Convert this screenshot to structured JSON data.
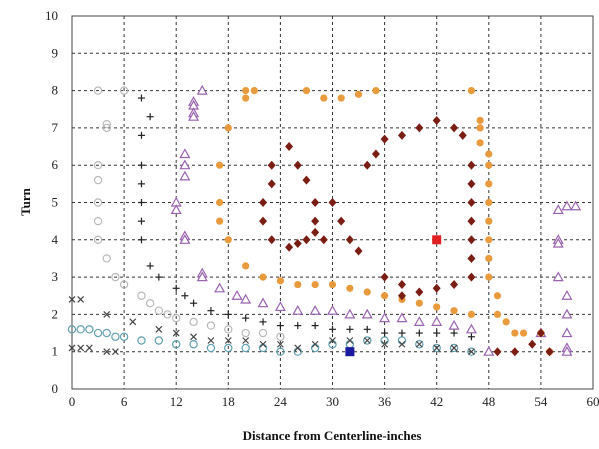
{
  "chart_data": {
    "type": "scatter",
    "title": "",
    "xlabel": "Distance from Centerline-inches",
    "ylabel": "Turn",
    "xlim": [
      0,
      60
    ],
    "ylim": [
      0,
      10
    ],
    "x_ticks": [
      "0",
      "6",
      "12",
      "18",
      "24",
      "30",
      "36",
      "42",
      "48",
      "54",
      "60"
    ],
    "y_ticks": [
      "0",
      "1",
      "2",
      "3",
      "4",
      "5",
      "6",
      "7",
      "8",
      "9",
      "10"
    ],
    "grid": "dashed",
    "legend": "none",
    "series": [
      {
        "marker": "open-circle-gray",
        "color": "#b8b8b8",
        "points": [
          [
            3,
            8
          ],
          [
            6,
            8
          ],
          [
            4,
            7.1
          ],
          [
            4,
            7.0
          ],
          [
            3,
            6
          ],
          [
            3,
            5.6
          ],
          [
            3,
            5
          ],
          [
            3,
            4.5
          ],
          [
            3,
            4
          ],
          [
            4,
            3.5
          ],
          [
            5,
            3
          ],
          [
            6,
            2.8
          ],
          [
            8,
            2.5
          ],
          [
            9,
            2.3
          ],
          [
            10,
            2.1
          ],
          [
            11,
            2
          ],
          [
            12,
            1.9
          ],
          [
            14,
            1.8
          ],
          [
            16,
            1.7
          ],
          [
            18,
            1.6
          ],
          [
            20,
            1.5
          ],
          [
            22,
            1.5
          ],
          [
            24,
            1.4
          ]
        ]
      },
      {
        "marker": "open-circle-teal",
        "color": "#5fa0b0",
        "points": [
          [
            0,
            1.6
          ],
          [
            1,
            1.6
          ],
          [
            2,
            1.6
          ],
          [
            3,
            1.5
          ],
          [
            4,
            1.5
          ],
          [
            5,
            1.4
          ],
          [
            6,
            1.4
          ],
          [
            8,
            1.3
          ],
          [
            10,
            1.3
          ],
          [
            12,
            1.2
          ],
          [
            14,
            1.2
          ],
          [
            16,
            1.1
          ],
          [
            18,
            1.1
          ],
          [
            20,
            1.1
          ],
          [
            22,
            1.1
          ],
          [
            24,
            1.0
          ],
          [
            26,
            1.0
          ],
          [
            28,
            1.1
          ],
          [
            30,
            1.2
          ],
          [
            32,
            1.2
          ],
          [
            34,
            1.3
          ],
          [
            36,
            1.3
          ],
          [
            38,
            1.3
          ],
          [
            40,
            1.2
          ],
          [
            42,
            1.1
          ],
          [
            44,
            1.1
          ],
          [
            46,
            1.0
          ]
        ]
      },
      {
        "marker": "plus",
        "color": "#222222",
        "points": [
          [
            8,
            7.8
          ],
          [
            9,
            7.3
          ],
          [
            8,
            6.8
          ],
          [
            8,
            6
          ],
          [
            8,
            5.5
          ],
          [
            8,
            5
          ],
          [
            8,
            4.5
          ],
          [
            8,
            4
          ],
          [
            9,
            3.3
          ],
          [
            10,
            3
          ],
          [
            12,
            2.7
          ],
          [
            13,
            2.5
          ],
          [
            14,
            2.3
          ],
          [
            16,
            2.1
          ],
          [
            18,
            2
          ],
          [
            20,
            1.9
          ],
          [
            22,
            1.8
          ],
          [
            24,
            1.7
          ],
          [
            26,
            1.7
          ],
          [
            28,
            1.7
          ],
          [
            30,
            1.6
          ],
          [
            32,
            1.6
          ],
          [
            34,
            1.6
          ],
          [
            36,
            1.5
          ],
          [
            38,
            1.5
          ],
          [
            40,
            1.5
          ],
          [
            42,
            1.5
          ],
          [
            44,
            1.5
          ],
          [
            46,
            1.4
          ]
        ]
      },
      {
        "marker": "x",
        "color": "#444444",
        "points": [
          [
            0,
            2.4
          ],
          [
            1,
            2.4
          ],
          [
            4,
            2
          ],
          [
            7,
            1.8
          ],
          [
            10,
            1.6
          ],
          [
            12,
            1.5
          ],
          [
            14,
            1.4
          ],
          [
            16,
            1.3
          ],
          [
            18,
            1.3
          ],
          [
            20,
            1.3
          ],
          [
            22,
            1.2
          ],
          [
            24,
            1.2
          ],
          [
            26,
            1.1
          ],
          [
            28,
            1.2
          ],
          [
            30,
            1.3
          ],
          [
            32,
            1.3
          ],
          [
            34,
            1.3
          ],
          [
            36,
            1.2
          ],
          [
            38,
            1.2
          ],
          [
            40,
            1.2
          ],
          [
            42,
            1.1
          ],
          [
            44,
            1.1
          ],
          [
            46,
            1.0
          ],
          [
            0,
            1.1
          ],
          [
            1,
            1.1
          ],
          [
            2,
            1.1
          ],
          [
            4,
            1.0
          ],
          [
            5,
            1.0
          ]
        ]
      },
      {
        "marker": "open-triangle",
        "color": "#9a62b0",
        "points": [
          [
            15,
            8
          ],
          [
            14,
            7.7
          ],
          [
            14,
            7.6
          ],
          [
            14,
            7.4
          ],
          [
            14,
            7.3
          ],
          [
            13,
            6.3
          ],
          [
            13,
            6.0
          ],
          [
            13,
            5.7
          ],
          [
            12,
            5
          ],
          [
            12,
            4.8
          ],
          [
            13,
            4.1
          ],
          [
            13,
            4.0
          ],
          [
            15,
            3.1
          ],
          [
            15,
            3.0
          ],
          [
            17,
            2.7
          ],
          [
            19,
            2.5
          ],
          [
            20,
            2.4
          ],
          [
            22,
            2.3
          ],
          [
            24,
            2.2
          ],
          [
            26,
            2.1
          ],
          [
            28,
            2.1
          ],
          [
            30,
            2.1
          ],
          [
            32,
            2.0
          ],
          [
            34,
            2.0
          ],
          [
            36,
            1.9
          ],
          [
            38,
            1.9
          ],
          [
            40,
            1.8
          ],
          [
            42,
            1.8
          ],
          [
            44,
            1.7
          ],
          [
            46,
            1.6
          ],
          [
            48,
            1.0
          ],
          [
            54,
            1.5
          ],
          [
            56,
            4.8
          ],
          [
            57,
            4.9
          ],
          [
            58,
            4.9
          ],
          [
            56,
            4
          ],
          [
            56,
            3.9
          ],
          [
            56,
            3.0
          ],
          [
            57,
            2.5
          ],
          [
            57,
            2.0
          ],
          [
            57,
            1.5
          ],
          [
            57,
            1.1
          ],
          [
            57,
            1.0
          ]
        ]
      },
      {
        "marker": "orange-dot",
        "color": "#e89a3c",
        "points": [
          [
            20,
            8
          ],
          [
            21,
            8
          ],
          [
            20,
            7.8
          ],
          [
            18,
            7
          ],
          [
            17,
            6
          ],
          [
            17,
            5
          ],
          [
            17,
            4.5
          ],
          [
            18,
            4
          ],
          [
            20,
            3.3
          ],
          [
            22,
            3
          ],
          [
            24,
            2.9
          ],
          [
            26,
            2.8
          ],
          [
            28,
            2.8
          ],
          [
            30,
            2.8
          ],
          [
            32,
            2.7
          ],
          [
            34,
            2.6
          ],
          [
            36,
            2.5
          ],
          [
            38,
            2.4
          ],
          [
            40,
            2.3
          ],
          [
            42,
            2.2
          ],
          [
            44,
            2.1
          ],
          [
            46,
            2.0
          ],
          [
            27,
            8
          ],
          [
            29,
            7.8
          ],
          [
            31,
            7.8
          ],
          [
            33,
            7.9
          ],
          [
            35,
            8
          ],
          [
            46,
            8
          ],
          [
            47,
            7.2
          ],
          [
            47,
            7.0
          ],
          [
            47,
            6.6
          ],
          [
            48,
            6.3
          ],
          [
            48,
            6.0
          ],
          [
            48,
            5.5
          ],
          [
            48,
            5.0
          ],
          [
            48,
            4.5
          ],
          [
            48,
            4.0
          ],
          [
            48,
            3.5
          ],
          [
            48,
            3.0
          ],
          [
            49,
            2.5
          ],
          [
            49,
            2.0
          ],
          [
            50,
            1.8
          ],
          [
            51,
            1.5
          ],
          [
            52,
            1.5
          ],
          [
            54,
            1.5
          ],
          [
            55,
            1.0
          ]
        ]
      },
      {
        "marker": "diamond",
        "color": "#7a1e14",
        "points": [
          [
            23,
            6
          ],
          [
            23,
            5.5
          ],
          [
            22,
            5
          ],
          [
            22,
            4.5
          ],
          [
            23,
            4
          ],
          [
            25,
            3.8
          ],
          [
            26,
            3.9
          ],
          [
            27,
            4
          ],
          [
            28,
            4.2
          ],
          [
            25,
            6.5
          ],
          [
            26,
            6
          ],
          [
            27,
            5.6
          ],
          [
            28,
            5
          ],
          [
            28,
            4.5
          ],
          [
            29,
            4
          ],
          [
            30,
            5
          ],
          [
            31,
            4.5
          ],
          [
            32,
            4
          ],
          [
            33,
            3.7
          ],
          [
            34,
            6
          ],
          [
            35,
            6.3
          ],
          [
            36,
            6.7
          ],
          [
            38,
            6.8
          ],
          [
            40,
            7
          ],
          [
            42,
            7.2
          ],
          [
            44,
            7
          ],
          [
            45,
            6.8
          ],
          [
            46,
            6
          ],
          [
            46,
            5.5
          ],
          [
            46,
            5
          ],
          [
            46,
            4.5
          ],
          [
            46,
            4
          ],
          [
            46,
            3.5
          ],
          [
            46,
            3
          ],
          [
            44,
            2.8
          ],
          [
            42,
            2.7
          ],
          [
            40,
            2.6
          ],
          [
            38,
            2.8
          ],
          [
            36,
            3
          ],
          [
            38,
            2.5
          ],
          [
            49,
            1.0
          ],
          [
            51,
            1.0
          ],
          [
            53,
            1.2
          ],
          [
            54,
            1.5
          ],
          [
            55,
            1.0
          ]
        ]
      },
      {
        "marker": "square-red",
        "color": "#e02020",
        "points": [
          [
            42,
            4
          ]
        ]
      },
      {
        "marker": "square-blue",
        "color": "#1a1aa0",
        "points": [
          [
            32,
            1
          ]
        ]
      }
    ]
  }
}
